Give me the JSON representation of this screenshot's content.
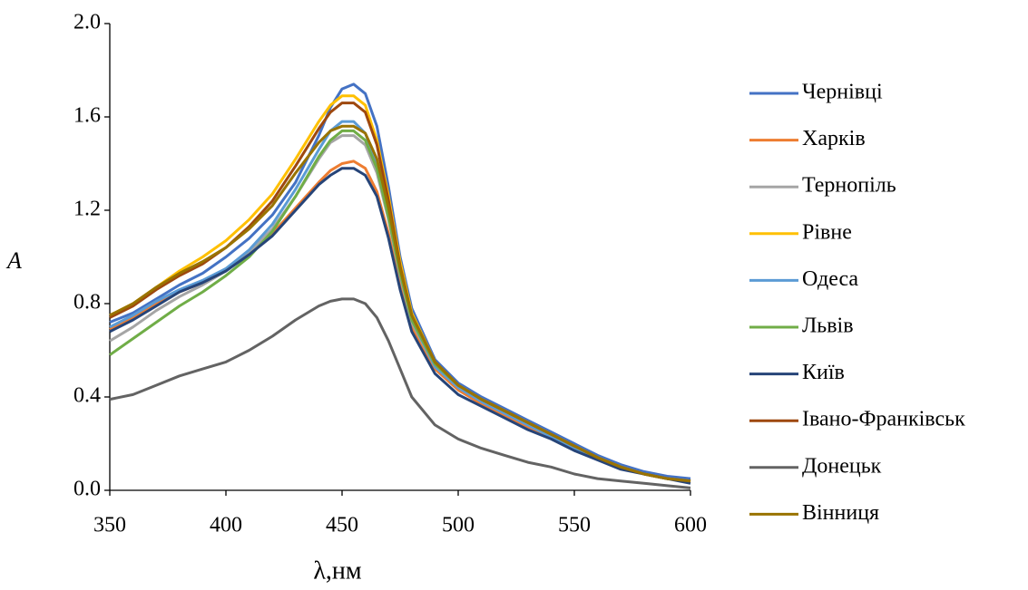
{
  "chart_data": {
    "type": "line",
    "xlabel": "λ,нм",
    "ylabel": "A",
    "x": [
      350,
      360,
      370,
      380,
      390,
      400,
      410,
      420,
      430,
      440,
      445,
      450,
      455,
      460,
      465,
      470,
      475,
      480,
      490,
      500,
      510,
      520,
      530,
      540,
      550,
      560,
      570,
      580,
      590,
      600
    ],
    "series": [
      {
        "name": "Чернівці",
        "color": "#4472c4",
        "values": [
          0.72,
          0.76,
          0.82,
          0.88,
          0.93,
          1.0,
          1.08,
          1.18,
          1.32,
          1.52,
          1.64,
          1.72,
          1.74,
          1.7,
          1.56,
          1.3,
          1.0,
          0.78,
          0.56,
          0.46,
          0.4,
          0.35,
          0.3,
          0.25,
          0.2,
          0.15,
          0.11,
          0.08,
          0.06,
          0.05
        ]
      },
      {
        "name": "Харків",
        "color": "#ed7d31",
        "values": [
          0.69,
          0.74,
          0.8,
          0.85,
          0.89,
          0.95,
          1.02,
          1.1,
          1.21,
          1.32,
          1.37,
          1.4,
          1.41,
          1.38,
          1.28,
          1.1,
          0.88,
          0.7,
          0.52,
          0.43,
          0.37,
          0.32,
          0.27,
          0.23,
          0.18,
          0.14,
          0.1,
          0.07,
          0.05,
          0.04
        ]
      },
      {
        "name": "Тернопіль",
        "color": "#a5a5a5",
        "values": [
          0.64,
          0.7,
          0.77,
          0.83,
          0.88,
          0.94,
          1.02,
          1.12,
          1.26,
          1.42,
          1.49,
          1.52,
          1.52,
          1.48,
          1.36,
          1.16,
          0.92,
          0.72,
          0.53,
          0.44,
          0.38,
          0.33,
          0.28,
          0.23,
          0.18,
          0.14,
          0.1,
          0.07,
          0.05,
          0.04
        ]
      },
      {
        "name": "Рівне",
        "color": "#ffc000",
        "values": [
          0.75,
          0.8,
          0.87,
          0.94,
          1.0,
          1.07,
          1.16,
          1.27,
          1.42,
          1.58,
          1.65,
          1.69,
          1.69,
          1.65,
          1.5,
          1.26,
          0.98,
          0.76,
          0.55,
          0.45,
          0.39,
          0.34,
          0.29,
          0.24,
          0.19,
          0.14,
          0.1,
          0.07,
          0.05,
          0.04
        ]
      },
      {
        "name": "Одеса",
        "color": "#5b9bd5",
        "values": [
          0.7,
          0.75,
          0.81,
          0.86,
          0.9,
          0.95,
          1.03,
          1.14,
          1.29,
          1.46,
          1.54,
          1.58,
          1.58,
          1.53,
          1.4,
          1.18,
          0.93,
          0.73,
          0.53,
          0.44,
          0.38,
          0.33,
          0.28,
          0.23,
          0.18,
          0.14,
          0.1,
          0.07,
          0.05,
          0.04
        ]
      },
      {
        "name": "Львів",
        "color": "#70ad47",
        "values": [
          0.58,
          0.65,
          0.72,
          0.79,
          0.85,
          0.92,
          1.0,
          1.11,
          1.26,
          1.43,
          1.5,
          1.54,
          1.54,
          1.5,
          1.38,
          1.17,
          0.93,
          0.73,
          0.54,
          0.45,
          0.39,
          0.34,
          0.29,
          0.24,
          0.19,
          0.14,
          0.1,
          0.07,
          0.05,
          0.04
        ]
      },
      {
        "name": "Київ",
        "color": "#264478",
        "values": [
          0.68,
          0.73,
          0.79,
          0.85,
          0.89,
          0.94,
          1.01,
          1.09,
          1.2,
          1.31,
          1.35,
          1.38,
          1.38,
          1.35,
          1.26,
          1.08,
          0.86,
          0.68,
          0.5,
          0.41,
          0.36,
          0.31,
          0.26,
          0.22,
          0.17,
          0.13,
          0.09,
          0.07,
          0.05,
          0.03
        ]
      },
      {
        "name": "Івано-Франківськ",
        "color": "#9e480e",
        "values": [
          0.74,
          0.79,
          0.86,
          0.92,
          0.97,
          1.04,
          1.13,
          1.24,
          1.39,
          1.55,
          1.62,
          1.66,
          1.66,
          1.62,
          1.48,
          1.24,
          0.96,
          0.75,
          0.55,
          0.45,
          0.39,
          0.34,
          0.29,
          0.24,
          0.19,
          0.14,
          0.1,
          0.07,
          0.05,
          0.04
        ]
      },
      {
        "name": "Донецьк",
        "color": "#636363",
        "values": [
          0.39,
          0.41,
          0.45,
          0.49,
          0.52,
          0.55,
          0.6,
          0.66,
          0.73,
          0.79,
          0.81,
          0.82,
          0.82,
          0.8,
          0.74,
          0.64,
          0.52,
          0.4,
          0.28,
          0.22,
          0.18,
          0.15,
          0.12,
          0.1,
          0.07,
          0.05,
          0.04,
          0.03,
          0.02,
          0.01
        ]
      },
      {
        "name": "Вінниця",
        "color": "#997300",
        "values": [
          0.75,
          0.8,
          0.87,
          0.93,
          0.98,
          1.04,
          1.12,
          1.22,
          1.36,
          1.49,
          1.54,
          1.56,
          1.56,
          1.53,
          1.42,
          1.21,
          0.95,
          0.75,
          0.55,
          0.45,
          0.39,
          0.34,
          0.29,
          0.24,
          0.19,
          0.14,
          0.1,
          0.07,
          0.05,
          0.04
        ]
      }
    ],
    "xlim": [
      350,
      600
    ],
    "xticks": [
      350,
      400,
      450,
      500,
      550,
      600
    ],
    "ylim": [
      0,
      2
    ],
    "yticks": [
      {
        "value": 0,
        "label": "0.0"
      },
      0.4,
      0.8,
      1.2,
      1.6,
      {
        "value": 2,
        "label": "2.0"
      }
    ],
    "grid": false,
    "legend": "right"
  }
}
